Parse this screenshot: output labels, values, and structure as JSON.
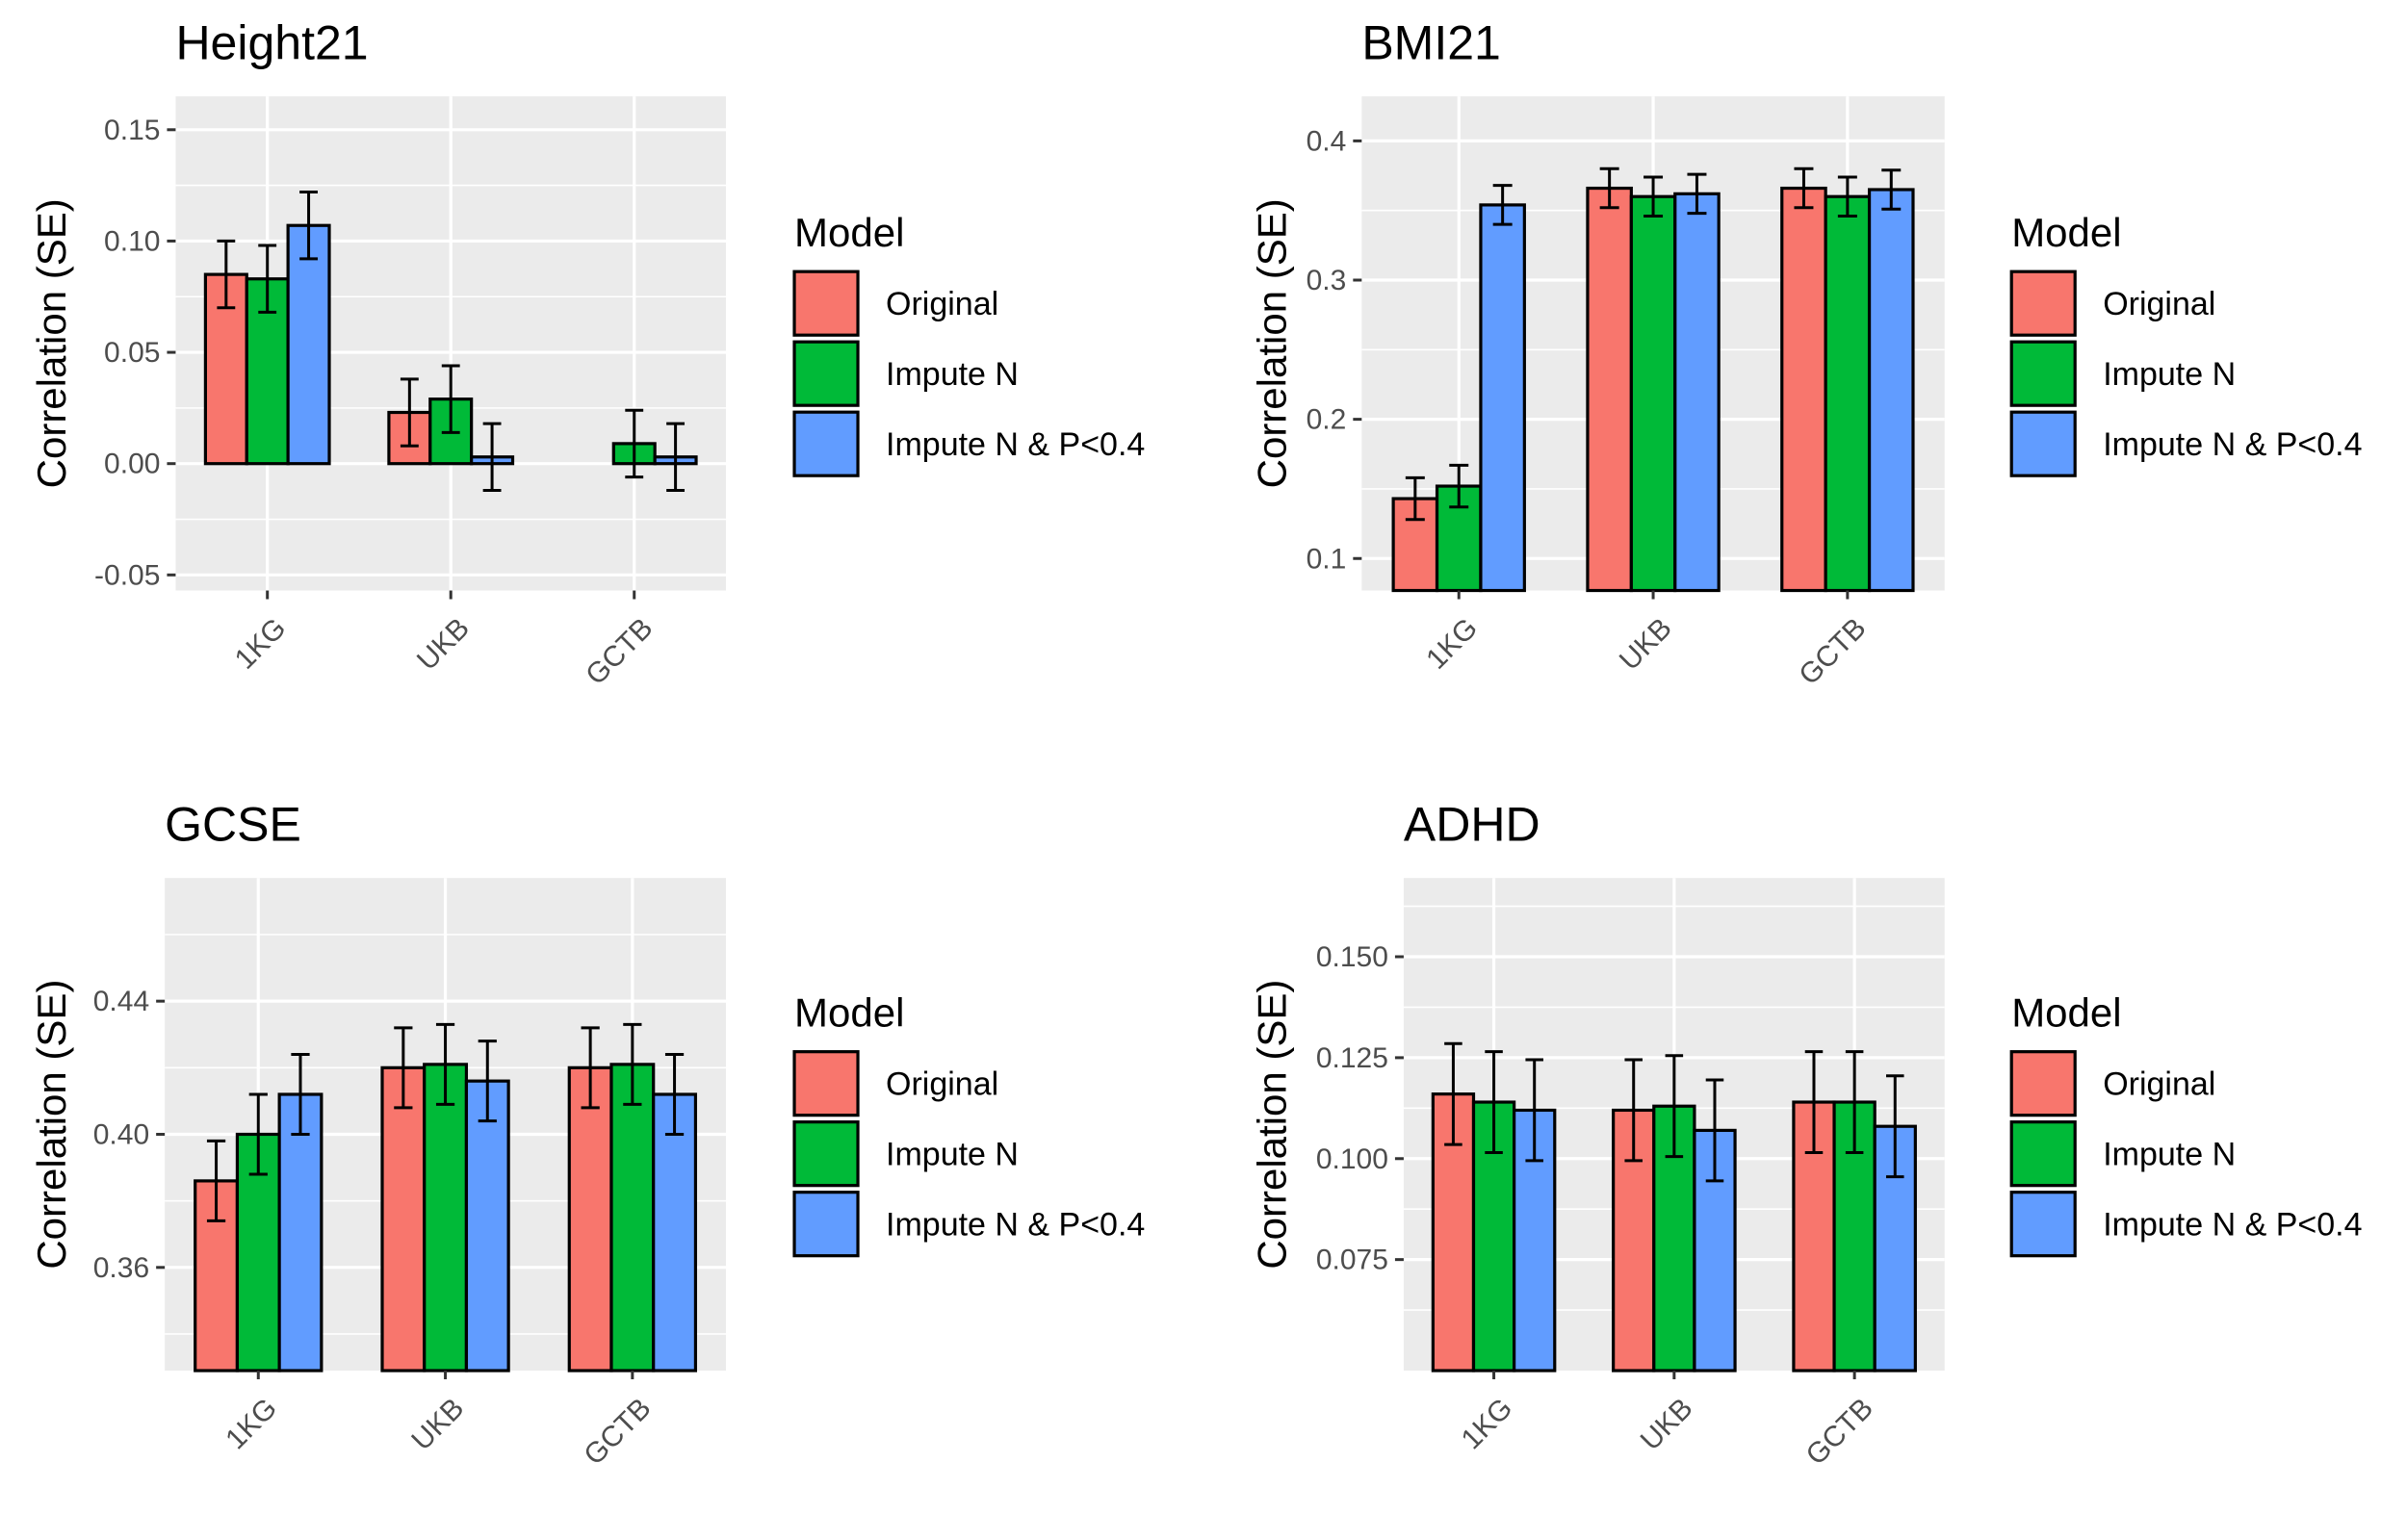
{
  "legend": {
    "title": "Model",
    "items": [
      {
        "label": "Original",
        "color": "#F8766D"
      },
      {
        "label": "Impute N",
        "color": "#00BA38"
      },
      {
        "label": "Impute N & P<0.4",
        "color": "#619CFF"
      }
    ]
  },
  "colors": {
    "panel_background": "#EBEBEB",
    "grid_major": "#FFFFFF",
    "bar_outline": "#000000",
    "tick_text": "#4D4D4D"
  },
  "chart_data": [
    {
      "type": "bar",
      "title": "Height21",
      "ylabel": "Correlation (SE)",
      "xlabel": "",
      "categories": [
        "1KG",
        "UKB",
        "GCTB"
      ],
      "ylim": [
        -0.057,
        0.165
      ],
      "yticks": [
        -0.05,
        0.0,
        0.05,
        0.1,
        0.15
      ],
      "ytick_labels": [
        "-0.05",
        "0.00",
        "0.05",
        "0.10",
        "0.15"
      ],
      "bar_baseline": 0,
      "grid": true,
      "legend_position": "right",
      "series": [
        {
          "name": "Original",
          "values": [
            0.085,
            0.023,
            0.0
          ],
          "errors": [
            0.015,
            0.015,
            0.0
          ]
        },
        {
          "name": "Impute N",
          "values": [
            0.083,
            0.029,
            0.009
          ],
          "errors": [
            0.015,
            0.015,
            0.015
          ]
        },
        {
          "name": "Impute N & P<0.4",
          "values": [
            0.107,
            0.003,
            0.003
          ],
          "errors": [
            0.015,
            0.015,
            0.015
          ]
        }
      ]
    },
    {
      "type": "bar",
      "title": "BMI21",
      "ylabel": "Correlation (SE)",
      "xlabel": "",
      "categories": [
        "1KG",
        "UKB",
        "GCTB"
      ],
      "ylim": [
        0.077,
        0.432
      ],
      "yticks": [
        0.1,
        0.2,
        0.3,
        0.4
      ],
      "ytick_labels": [
        "0.1",
        "0.2",
        "0.3",
        "0.4"
      ],
      "bar_baseline": "axis_bottom",
      "grid": true,
      "legend_position": "right",
      "series": [
        {
          "name": "Original",
          "values": [
            0.143,
            0.366,
            0.366
          ],
          "errors": [
            0.015,
            0.014,
            0.014
          ]
        },
        {
          "name": "Impute N",
          "values": [
            0.152,
            0.36,
            0.36
          ],
          "errors": [
            0.015,
            0.014,
            0.014
          ]
        },
        {
          "name": "Impute N & P<0.4",
          "values": [
            0.354,
            0.362,
            0.365
          ],
          "errors": [
            0.014,
            0.014,
            0.014
          ]
        }
      ]
    },
    {
      "type": "bar",
      "title": "GCSE",
      "ylabel": "Correlation (SE)",
      "xlabel": "",
      "categories": [
        "1KG",
        "UKB",
        "GCTB"
      ],
      "ylim": [
        0.329,
        0.477
      ],
      "yticks": [
        0.36,
        0.4,
        0.44
      ],
      "ytick_labels": [
        "0.36",
        "0.40",
        "0.44"
      ],
      "bar_baseline": "axis_bottom",
      "grid": true,
      "legend_position": "right",
      "series": [
        {
          "name": "Original",
          "values": [
            0.386,
            0.42,
            0.42
          ],
          "errors": [
            0.012,
            0.012,
            0.012
          ]
        },
        {
          "name": "Impute N",
          "values": [
            0.4,
            0.421,
            0.421
          ],
          "errors": [
            0.012,
            0.012,
            0.012
          ]
        },
        {
          "name": "Impute N & P<0.4",
          "values": [
            0.412,
            0.416,
            0.412
          ],
          "errors": [
            0.012,
            0.012,
            0.012
          ]
        }
      ]
    },
    {
      "type": "bar",
      "title": "ADHD",
      "ylabel": "Correlation (SE)",
      "xlabel": "",
      "categories": [
        "1KG",
        "UKB",
        "GCTB"
      ],
      "ylim": [
        0.0475,
        0.1695
      ],
      "yticks": [
        0.075,
        0.1,
        0.125,
        0.15
      ],
      "ytick_labels": [
        "0.075",
        "0.100",
        "0.125",
        "0.150"
      ],
      "bar_baseline": "axis_bottom",
      "grid": true,
      "legend_position": "right",
      "series": [
        {
          "name": "Original",
          "values": [
            0.116,
            0.112,
            0.114
          ],
          "errors": [
            0.0125,
            0.0125,
            0.0125
          ]
        },
        {
          "name": "Impute N",
          "values": [
            0.114,
            0.113,
            0.114
          ],
          "errors": [
            0.0125,
            0.0125,
            0.0125
          ]
        },
        {
          "name": "Impute N & P<0.4",
          "values": [
            0.112,
            0.107,
            0.108
          ],
          "errors": [
            0.0125,
            0.0125,
            0.0125
          ]
        }
      ]
    }
  ]
}
